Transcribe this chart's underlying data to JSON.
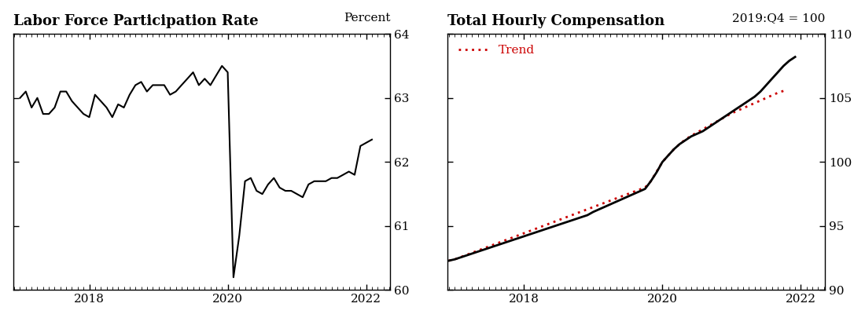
{
  "lfpr_title": "Labor Force Participation Rate",
  "lfpr_ylabel": "Percent",
  "lfpr_ylim": [
    60,
    64
  ],
  "lfpr_yticks": [
    60,
    61,
    62,
    63,
    64
  ],
  "lfpr_xlim": [
    2016.9,
    2022.35
  ],
  "lfpr_xticks": [
    2018,
    2020,
    2022
  ],
  "thc_title": "Total Hourly Compensation",
  "thc_subtitle": "2019:Q4 = 100",
  "thc_ylim": [
    90,
    110
  ],
  "thc_yticks": [
    90,
    95,
    100,
    105,
    110
  ],
  "thc_xlim": [
    2016.9,
    2022.35
  ],
  "thc_xticks": [
    2018,
    2020,
    2022
  ],
  "thc_legend_label": "Trend",
  "background_color": "#ffffff",
  "line_color": "#000000",
  "trend_color": "#cc0000",
  "lfpr_data": [
    [
      2017.0,
      63.0
    ],
    [
      2017.083,
      63.1
    ],
    [
      2017.167,
      62.85
    ],
    [
      2017.25,
      63.0
    ],
    [
      2017.333,
      62.75
    ],
    [
      2017.417,
      62.75
    ],
    [
      2017.5,
      62.85
    ],
    [
      2017.583,
      63.1
    ],
    [
      2017.667,
      63.1
    ],
    [
      2017.75,
      62.95
    ],
    [
      2017.833,
      62.85
    ],
    [
      2017.917,
      62.75
    ],
    [
      2018.0,
      62.7
    ],
    [
      2018.083,
      63.05
    ],
    [
      2018.167,
      62.95
    ],
    [
      2018.25,
      62.85
    ],
    [
      2018.333,
      62.7
    ],
    [
      2018.417,
      62.9
    ],
    [
      2018.5,
      62.85
    ],
    [
      2018.583,
      63.05
    ],
    [
      2018.667,
      63.2
    ],
    [
      2018.75,
      63.25
    ],
    [
      2018.833,
      63.1
    ],
    [
      2018.917,
      63.2
    ],
    [
      2019.0,
      63.2
    ],
    [
      2019.083,
      63.2
    ],
    [
      2019.167,
      63.05
    ],
    [
      2019.25,
      63.1
    ],
    [
      2019.333,
      63.2
    ],
    [
      2019.417,
      63.3
    ],
    [
      2019.5,
      63.4
    ],
    [
      2019.583,
      63.2
    ],
    [
      2019.667,
      63.3
    ],
    [
      2019.75,
      63.2
    ],
    [
      2019.833,
      63.35
    ],
    [
      2019.917,
      63.5
    ],
    [
      2020.0,
      63.4
    ],
    [
      2020.083,
      60.2
    ],
    [
      2020.167,
      60.85
    ],
    [
      2020.25,
      61.7
    ],
    [
      2020.333,
      61.75
    ],
    [
      2020.417,
      61.55
    ],
    [
      2020.5,
      61.5
    ],
    [
      2020.583,
      61.65
    ],
    [
      2020.667,
      61.75
    ],
    [
      2020.75,
      61.6
    ],
    [
      2020.833,
      61.55
    ],
    [
      2020.917,
      61.55
    ],
    [
      2021.0,
      61.5
    ],
    [
      2021.083,
      61.45
    ],
    [
      2021.167,
      61.65
    ],
    [
      2021.25,
      61.7
    ],
    [
      2021.333,
      61.7
    ],
    [
      2021.417,
      61.7
    ],
    [
      2021.5,
      61.75
    ],
    [
      2021.583,
      61.75
    ],
    [
      2021.667,
      61.8
    ],
    [
      2021.75,
      61.85
    ],
    [
      2021.833,
      61.8
    ],
    [
      2021.917,
      62.25
    ],
    [
      2022.0,
      62.3
    ],
    [
      2022.083,
      62.35
    ]
  ],
  "thc_data": [
    [
      2016.917,
      92.3
    ],
    [
      2017.0,
      92.4
    ],
    [
      2017.083,
      92.55
    ],
    [
      2017.167,
      92.7
    ],
    [
      2017.25,
      92.85
    ],
    [
      2017.333,
      93.0
    ],
    [
      2017.417,
      93.15
    ],
    [
      2017.5,
      93.3
    ],
    [
      2017.583,
      93.45
    ],
    [
      2017.667,
      93.6
    ],
    [
      2017.75,
      93.75
    ],
    [
      2017.833,
      93.9
    ],
    [
      2017.917,
      94.05
    ],
    [
      2018.0,
      94.2
    ],
    [
      2018.083,
      94.35
    ],
    [
      2018.167,
      94.5
    ],
    [
      2018.25,
      94.65
    ],
    [
      2018.333,
      94.8
    ],
    [
      2018.417,
      94.95
    ],
    [
      2018.5,
      95.1
    ],
    [
      2018.583,
      95.25
    ],
    [
      2018.667,
      95.4
    ],
    [
      2018.75,
      95.55
    ],
    [
      2018.833,
      95.7
    ],
    [
      2018.917,
      95.85
    ],
    [
      2019.0,
      96.1
    ],
    [
      2019.083,
      96.3
    ],
    [
      2019.167,
      96.5
    ],
    [
      2019.25,
      96.7
    ],
    [
      2019.333,
      96.9
    ],
    [
      2019.417,
      97.1
    ],
    [
      2019.5,
      97.3
    ],
    [
      2019.583,
      97.5
    ],
    [
      2019.667,
      97.7
    ],
    [
      2019.75,
      97.9
    ],
    [
      2019.833,
      98.5
    ],
    [
      2019.917,
      99.2
    ],
    [
      2020.0,
      100.0
    ],
    [
      2020.083,
      100.5
    ],
    [
      2020.167,
      101.0
    ],
    [
      2020.25,
      101.4
    ],
    [
      2020.333,
      101.7
    ],
    [
      2020.417,
      102.0
    ],
    [
      2020.5,
      102.2
    ],
    [
      2020.583,
      102.4
    ],
    [
      2020.667,
      102.7
    ],
    [
      2020.75,
      103.0
    ],
    [
      2020.833,
      103.3
    ],
    [
      2020.917,
      103.6
    ],
    [
      2021.0,
      103.9
    ],
    [
      2021.083,
      104.2
    ],
    [
      2021.167,
      104.5
    ],
    [
      2021.25,
      104.8
    ],
    [
      2021.333,
      105.1
    ],
    [
      2021.417,
      105.5
    ],
    [
      2021.5,
      106.0
    ],
    [
      2021.583,
      106.5
    ],
    [
      2021.667,
      107.0
    ],
    [
      2021.75,
      107.5
    ],
    [
      2021.833,
      107.9
    ],
    [
      2021.917,
      108.2
    ]
  ],
  "trend_data": [
    [
      2016.917,
      92.3
    ],
    [
      2017.0,
      92.4
    ],
    [
      2017.083,
      92.57
    ],
    [
      2017.167,
      92.74
    ],
    [
      2017.25,
      92.91
    ],
    [
      2017.333,
      93.08
    ],
    [
      2017.417,
      93.25
    ],
    [
      2017.5,
      93.42
    ],
    [
      2017.583,
      93.59
    ],
    [
      2017.667,
      93.76
    ],
    [
      2017.75,
      93.93
    ],
    [
      2017.833,
      94.1
    ],
    [
      2017.917,
      94.27
    ],
    [
      2018.0,
      94.44
    ],
    [
      2018.083,
      94.61
    ],
    [
      2018.167,
      94.78
    ],
    [
      2018.25,
      94.95
    ],
    [
      2018.333,
      95.12
    ],
    [
      2018.417,
      95.29
    ],
    [
      2018.5,
      95.46
    ],
    [
      2018.583,
      95.63
    ],
    [
      2018.667,
      95.8
    ],
    [
      2018.75,
      95.97
    ],
    [
      2018.833,
      96.14
    ],
    [
      2018.917,
      96.31
    ],
    [
      2019.0,
      96.48
    ],
    [
      2019.083,
      96.65
    ],
    [
      2019.167,
      96.82
    ],
    [
      2019.25,
      96.99
    ],
    [
      2019.333,
      97.16
    ],
    [
      2019.417,
      97.33
    ],
    [
      2019.5,
      97.5
    ],
    [
      2019.583,
      97.67
    ],
    [
      2019.667,
      97.84
    ],
    [
      2019.75,
      98.01
    ],
    [
      2019.833,
      98.5
    ],
    [
      2019.917,
      99.25
    ],
    [
      2020.0,
      100.0
    ],
    [
      2020.083,
      100.5
    ],
    [
      2020.167,
      101.0
    ],
    [
      2020.25,
      101.4
    ],
    [
      2020.333,
      101.75
    ],
    [
      2020.417,
      102.05
    ],
    [
      2020.5,
      102.3
    ],
    [
      2020.583,
      102.55
    ],
    [
      2020.667,
      102.8
    ],
    [
      2020.75,
      103.05
    ],
    [
      2020.833,
      103.3
    ],
    [
      2020.917,
      103.55
    ],
    [
      2021.0,
      103.8
    ],
    [
      2021.083,
      104.0
    ],
    [
      2021.167,
      104.2
    ],
    [
      2021.25,
      104.4
    ],
    [
      2021.333,
      104.6
    ],
    [
      2021.417,
      104.8
    ],
    [
      2021.5,
      105.0
    ],
    [
      2021.583,
      105.2
    ],
    [
      2021.667,
      105.4
    ],
    [
      2021.75,
      105.55
    ]
  ]
}
